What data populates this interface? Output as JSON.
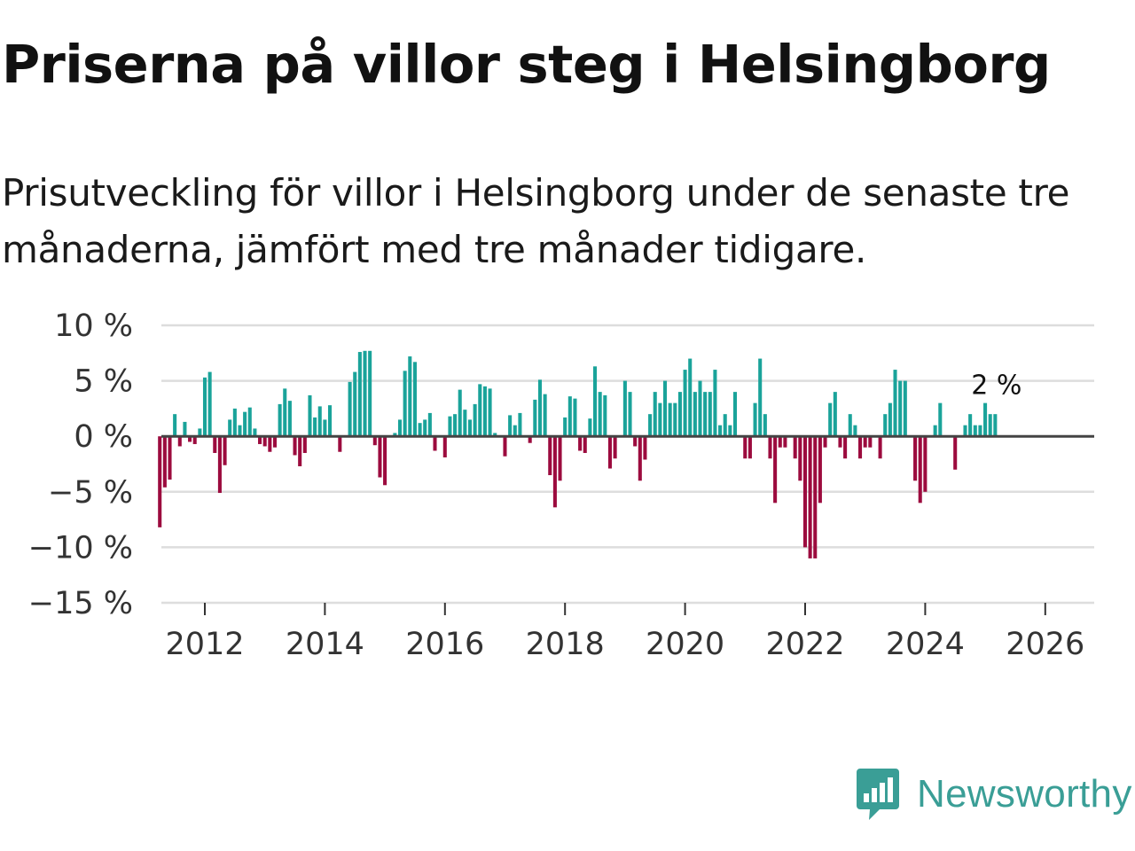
{
  "title": "Priserna på villor steg i Helsingborg",
  "subtitle": "Prisutveckling för villor i Helsingborg under de senaste tre månaderna, jämfört med tre månader tidigare.",
  "brand": {
    "name": "Newsworthy",
    "icon": "newsworthy-logo-icon",
    "color": "#3a9e96"
  },
  "colors": {
    "positive": "#1aa39a",
    "negative": "#9c0b3e",
    "grid": "#dddddd",
    "baseline": "#444444"
  },
  "chart_data": {
    "type": "bar",
    "title": "Priserna på villor steg i Helsingborg",
    "xlabel": "",
    "ylabel": "",
    "ylim": [
      -15,
      10
    ],
    "yticks": [
      10,
      5,
      0,
      -5,
      -10,
      -15
    ],
    "ytick_labels": [
      "10 %",
      "5 %",
      "0 %",
      "−5 %",
      "−10 %",
      "−15 %"
    ],
    "xticks": [
      2012,
      2014,
      2016,
      2018,
      2020,
      2022,
      2024,
      2026
    ],
    "xtick_labels": [
      "2012",
      "2014",
      "2016",
      "2018",
      "2020",
      "2022",
      "2024",
      "2026"
    ],
    "x_start": 2011.25,
    "step_years": 0.08333,
    "last_value_label": "2 %",
    "values": [
      -8.2,
      -4.6,
      -3.9,
      2.0,
      -0.9,
      1.3,
      -0.5,
      -0.7,
      0.7,
      5.3,
      5.8,
      -1.5,
      -5.1,
      -2.6,
      1.5,
      2.5,
      1.0,
      2.2,
      2.6,
      0.7,
      -0.7,
      -0.9,
      -1.4,
      -1.0,
      2.9,
      4.3,
      3.2,
      -1.7,
      -2.7,
      -1.5,
      3.7,
      1.7,
      2.7,
      1.5,
      2.8,
      0.0,
      -1.4,
      0.0,
      4.9,
      5.8,
      7.6,
      7.7,
      7.7,
      -0.8,
      -3.7,
      -4.4,
      0.0,
      0.3,
      1.5,
      5.9,
      7.2,
      6.7,
      1.2,
      1.5,
      2.1,
      -1.3,
      0.0,
      -1.9,
      1.8,
      2.0,
      4.2,
      2.4,
      1.5,
      2.9,
      4.7,
      4.5,
      4.3,
      0.3,
      0.0,
      -1.8,
      1.9,
      1.0,
      2.1,
      0.0,
      -0.6,
      3.3,
      5.1,
      3.8,
      -3.5,
      -6.4,
      -4.0,
      1.7,
      3.6,
      3.4,
      -1.3,
      -1.5,
      1.6,
      6.3,
      4.0,
      3.7,
      -2.9,
      -2.0,
      0.0,
      5.0,
      4.0,
      -0.9,
      -4.0,
      -2.1,
      2.0,
      4.0,
      3.0,
      5.0,
      3.0,
      3.0,
      4.0,
      6.0,
      7.0,
      4.0,
      5.0,
      4.0,
      4.0,
      6.0,
      1.0,
      2.0,
      1.0,
      4.0,
      0.0,
      -2.0,
      -2.0,
      3.0,
      7.0,
      2.0,
      -2.0,
      -6.0,
      -1.0,
      -1.0,
      0.0,
      -2.0,
      -4.0,
      -10.0,
      -11.0,
      -11.0,
      -6.0,
      -1.0,
      3.0,
      4.0,
      -1.0,
      -2.0,
      2.0,
      1.0,
      -2.0,
      -1.0,
      -1.0,
      0.0,
      -2.0,
      2.0,
      3.0,
      6.0,
      5.0,
      5.0,
      0.0,
      -4.0,
      -6.0,
      -5.0,
      0.0,
      1.0,
      3.0,
      0.0,
      0.0,
      -3.0,
      0.0,
      1.0,
      2.0,
      1.0,
      1.0,
      3.0,
      2.0,
      2.0
    ]
  }
}
